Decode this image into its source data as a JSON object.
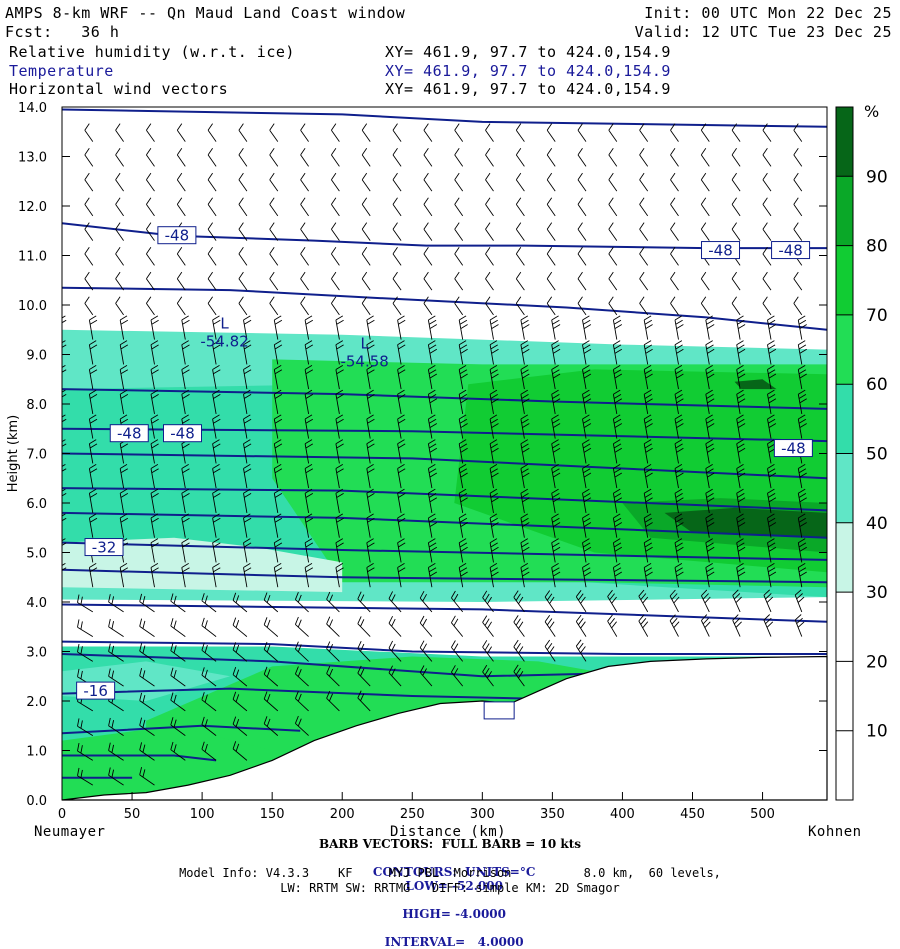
{
  "header": {
    "title": "AMPS 8-km WRF -- Qn Maud Land Coast window",
    "fcst": "Fcst:   36 h",
    "init": "Init: 00 UTC Mon 22 Dec 25",
    "valid": "Valid: 12 UTC Tue 23 Dec 25",
    "fields": [
      {
        "name": "Relative humidity (w.r.t. ice)",
        "xy": "XY= 461.9, 97.7 to 424.0,154.9"
      },
      {
        "name": "Temperature",
        "xy": "XY= 461.9, 97.7 to 424.0,154.9"
      },
      {
        "name": "Horizontal wind vectors",
        "xy": "XY= 461.9, 97.7 to 424.0,154.9"
      }
    ]
  },
  "chart_data": {
    "type": "heatmap",
    "xlabel": "Distance (km)",
    "ylabel": "Height (km)",
    "xlim": [
      0,
      546
    ],
    "ylim": [
      0,
      14
    ],
    "xticks": [
      0,
      50,
      100,
      150,
      200,
      250,
      300,
      350,
      400,
      450,
      500
    ],
    "yticks": [
      "0.0",
      "1.0",
      "2.0",
      "3.0",
      "4.0",
      "5.0",
      "6.0",
      "7.0",
      "8.0",
      "9.0",
      "10.0",
      "11.0",
      "12.0",
      "13.0",
      "14.0"
    ],
    "left_label": "Neumayer",
    "right_label": "Kohnen",
    "terrain": [
      [
        0,
        0
      ],
      [
        30,
        0.1
      ],
      [
        60,
        0.15
      ],
      [
        90,
        0.3
      ],
      [
        120,
        0.5
      ],
      [
        150,
        0.8
      ],
      [
        180,
        1.2
      ],
      [
        210,
        1.5
      ],
      [
        240,
        1.75
      ],
      [
        270,
        1.95
      ],
      [
        300,
        2.0
      ],
      [
        320,
        1.95
      ],
      [
        340,
        2.2
      ],
      [
        360,
        2.45
      ],
      [
        390,
        2.7
      ],
      [
        420,
        2.8
      ],
      [
        460,
        2.85
      ],
      [
        500,
        2.88
      ],
      [
        546,
        2.9
      ]
    ],
    "colorbar": {
      "unit": "%",
      "levels": [
        10,
        20,
        30,
        40,
        50,
        60,
        70,
        80,
        90
      ],
      "colors": [
        "#ffffff",
        "#ffffff",
        "#ffffff",
        "#c8f5e6",
        "#60e6c6",
        "#33ddaa",
        "#22dd55",
        "#11cc33",
        "#0aa828",
        "#066618"
      ]
    },
    "temperature_contours": {
      "units": "°C",
      "low": -52.0,
      "high": -4.0,
      "interval": 4.0,
      "labels": [
        {
          "text": "-48",
          "x": 82,
          "h": 11.4
        },
        {
          "text": "-48",
          "x": 470,
          "h": 11.1
        },
        {
          "text": "-48",
          "x": 520,
          "h": 11.1
        },
        {
          "text": "-48",
          "x": 48,
          "h": 7.4
        },
        {
          "text": "-48",
          "x": 86,
          "h": 7.4
        },
        {
          "text": "-48",
          "x": 522,
          "h": 7.1
        },
        {
          "text": "-32",
          "x": 30,
          "h": 5.1
        },
        {
          "text": "-16",
          "x": 24,
          "h": 2.2
        },
        {
          "text": "",
          "x": 312,
          "h": 1.8
        }
      ],
      "minima": [
        {
          "mark": "L",
          "x": 116,
          "h": 9.4,
          "value": "-54.82"
        },
        {
          "mark": "L",
          "x": 216,
          "h": 9.0,
          "value": "-54.58"
        }
      ]
    },
    "barbs_note": "BARB VECTORS:  FULL BARB = 10 kts"
  },
  "footer": {
    "barb": "BARB VECTORS:  FULL BARB = 10 kts",
    "contours_title": "CONTOURS:  UNITS=°C",
    "low": "LOW= -52.000",
    "high": "HIGH= -4.0000",
    "interval": "INTERVAL=   4.0000",
    "model_info": "Model Info: V4.3.3    KF     MYJ PBL  Morrison          8.0 km,  60 levels,",
    "physics": "LW: RRTM SW: RRTMG   DIFF: simple KM: 2D Smagor"
  }
}
